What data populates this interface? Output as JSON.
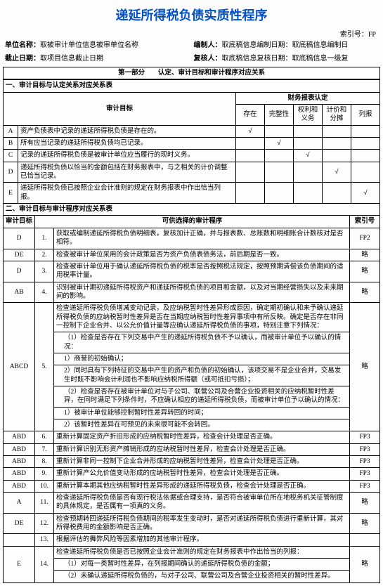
{
  "title": "递延所得税负债实质性程序",
  "index_label": "索引号：",
  "index_value": "FP",
  "meta": {
    "unit_label": "单位名称：",
    "unit_value": "取被审计单位信息被审单位名称",
    "preparer_label": "编制人：",
    "preparer_value": "取底稿信息编制日期：取底稿信息编制日",
    "cutoff_label": "截止日期：",
    "cutoff_value": "取项目信息截止日期",
    "reviewer_label": "复核人：",
    "reviewer_value": "取底稿信息复核日期：取底稿信息一级复"
  },
  "part1_header": "第一部分　　认定、审计目标和审计程序对应关系",
  "sectionA_title": "一、审计目标与认定关系对应关系表",
  "t1": {
    "col_target": "审计目标",
    "col_fin": "财务报表认定",
    "cols": [
      "存在",
      "完整性",
      "权利和义务",
      "计价和分摊",
      "列报"
    ],
    "rows": [
      {
        "code": "A",
        "text": "资产负债表中记录的递延所得税负债是存在的。",
        "checks": [
          "√",
          "",
          "",
          "",
          ""
        ]
      },
      {
        "code": "B",
        "text": "所有应当记录的递延所得税负债均已记录。",
        "checks": [
          "",
          "√",
          "",
          "",
          ""
        ]
      },
      {
        "code": "C",
        "text": "记录的递延所得税负债是被审计单位应当履行的现时义务。",
        "checks": [
          "",
          "",
          "√",
          "",
          ""
        ]
      },
      {
        "code": "D",
        "text": "递延所得税负债以恰当的金额包括在财务报表中，与之相关的计价调整已恰当记录。",
        "checks": [
          "",
          "",
          "",
          "√",
          ""
        ]
      },
      {
        "code": "E",
        "text": "递延所得税负债已按照企业会计准则的规定在财务报表中作出恰当列报。",
        "checks": [
          "",
          "",
          "",
          "",
          "√"
        ]
      }
    ]
  },
  "sectionB_title": "二、审计目标与审计程序对应关系表",
  "t2": {
    "col_target": "审计目标",
    "col_proc": "可供选择的审计程序",
    "col_idx": "索引号",
    "rows": [
      {
        "ref": "D",
        "num": "1.",
        "text": "获取或编制递延所得税负债明细表，复核加计正确，并与报表数、总账数和明细账合计数核对是否相符。",
        "idx": "FP2"
      },
      {
        "ref": "DE",
        "num": "2.",
        "text": "检查被审计单位采用的会计政策是否为资产负债表债务法，前后期是否一致。",
        "idx": "略"
      },
      {
        "ref": "D",
        "num": "3.",
        "text": "检查被审计单位用于确认递延所得税负债的税率是否按照税法规定，按照预期清偿该负债期间的适用税率计量。",
        "idx": "略"
      },
      {
        "ref": "AB",
        "num": "4.",
        "text": "识别被审计期初递延所得税资产和递延所得税负债的项目和金额，以及对当期经营损失以及未来期间的影响。",
        "idx": "略"
      },
      {
        "ref": "ABCD",
        "num": "5.",
        "text": "检查递延所得税负债增减变动记录，及应纳税暂时性差异形成原因，确定期初确认和未予确认递延所得税负债的应纳税暂时性差异是否在当期应纳税暂时性差异事项中有所反映。确定是否存在非同一控制下企业合并、以公允价值计量等应确认递延所得税负债的事项，特别注意下列情况：",
        "idx": "略",
        "subs": [
          "（1）检查是否存在下列交易中产生的递延所得税负债不予以确认，而被审计单位予以确认的情况：",
          "1）商誉的初始确认；",
          "2）同时具有下列特征的交易中产生的资产和负债的初始确认，该项交易不是企业合并，交易发生时既不影响会计利润也不影响应纳税所得额（或可抵扣亏损）；",
          "（2）检查是否存在被审计单位对与子公司、联营公司及合营企业投资相关的应纳税暂时性差异，在同时满足下列条件时，不应确认相应的递延所得税负债，而被审计单位予以确认的情况：",
          "1）被审计单位能够控制暂时性差异转回的时间；",
          "2）该暂时性差异在可预见的未来很可能不会转回。"
        ]
      },
      {
        "ref": "ABD",
        "num": "6.",
        "text": "重新计算固定资产折旧形成的应纳税暂时性差异，检查会计处理是否正确。",
        "idx": "FP3"
      },
      {
        "ref": "ABD",
        "num": "7.",
        "text": "重新计算识别无形资产摊销形成的应纳税暂时性差异，检查会计处理是否正确。",
        "idx": "FP3"
      },
      {
        "ref": "ABD",
        "num": "8.",
        "text": "重新计算非同一控制下企业合并形成的应纳税暂时性差异，检查会计处理是否正确。",
        "idx": "FP3"
      },
      {
        "ref": "ABD",
        "num": "9.",
        "text": "重新计算产公允价值变动形成的应纳税暂时性差异，检查会计处理是否正确。",
        "idx": "FP3"
      },
      {
        "ref": "ABD",
        "num": "10.",
        "text": "重新计算本期其他应纳税暂时性差异形成的递延所得税负债，检查会计处理是否正确。",
        "idx": "FP3"
      },
      {
        "ref": "A",
        "num": "11.",
        "text": "检查递延所得税负债是否有现行税法依据或合理支持，是否符合被审单位所在地税务机关征管制度的具体规定，是否属有一项真的义务。",
        "idx": "略"
      },
      {
        "ref": "DE",
        "num": "12.",
        "text": "检查预期转回递延所得税负债期间的税率发生变动时，是否对递延所得税负债进行重新计算，其对所得税费用的金额影响是否正确。",
        "idx": "略"
      },
      {
        "ref": "",
        "num": "13.",
        "text": "根据评估的舞弊风险等因素增加的其他审计程序。",
        "idx": ""
      },
      {
        "ref": "E",
        "num": "14.",
        "text": "检查递延所得税负债是否已按照企业会计准则的规定在财务报表中作出恰当的列报：",
        "idx": "略",
        "subs": [
          "（1）对每一类暂时性差异，在列报期间确认的递延所得税负债的金额；",
          "（2）未确认递延所得税负债的，与对子公司、联营公司及合营企业投资相关的暂时性差异。"
        ]
      }
    ]
  }
}
